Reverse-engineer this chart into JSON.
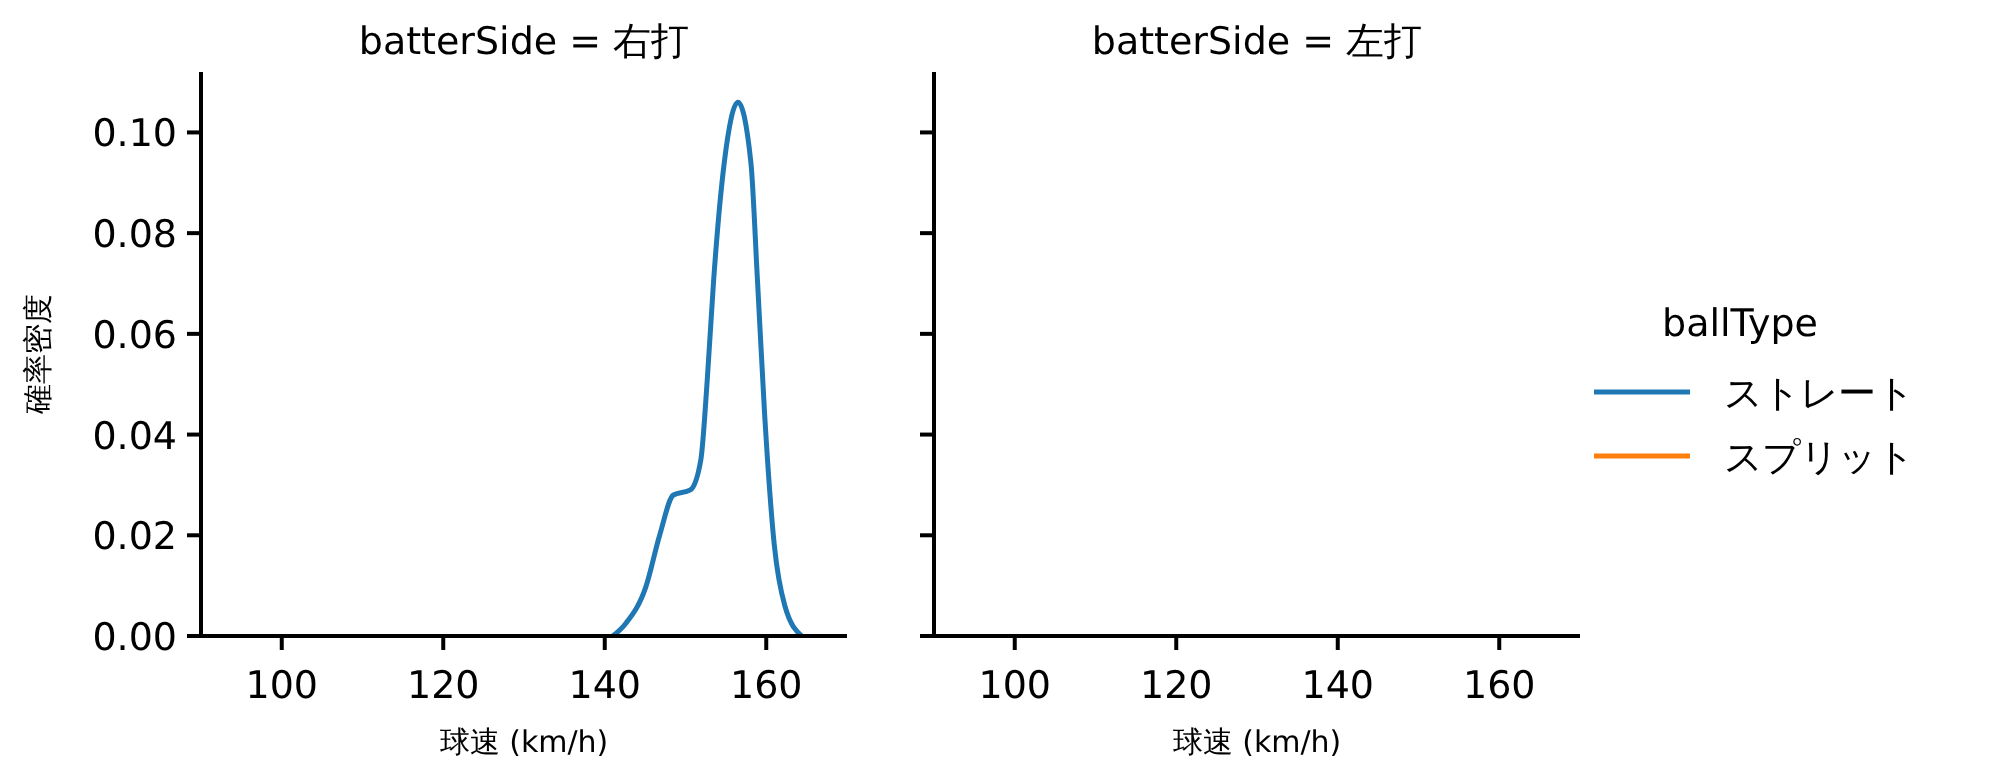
{
  "chart_data": [
    {
      "type": "line",
      "title": "batterSide = 右打",
      "xlabel": "球速 (km/h)",
      "ylabel": "確率密度",
      "xlim": [
        90,
        170
      ],
      "xticks": [
        100,
        120,
        140,
        160
      ],
      "ylim": [
        0,
        0.112
      ],
      "yticks": [
        {
          "value": 0,
          "label": "0.00"
        },
        {
          "value": 0.02,
          "label": "0.02"
        },
        {
          "value": 0.04,
          "label": "0.04"
        },
        {
          "value": 0.06,
          "label": "0.06"
        },
        {
          "value": 0.08,
          "label": "0.08"
        },
        {
          "value": 0.1,
          "label": "0.10"
        }
      ],
      "grid": false,
      "legend": "right",
      "legend_title": "ballType",
      "series": [
        {
          "name": "ストレート",
          "color": "#1f77b4",
          "x": [
            141,
            142.6,
            145.1,
            146.8,
            148.5,
            150.6,
            151.9,
            152.7,
            153.5,
            154.8,
            156.5,
            158.1,
            158.9,
            159.8,
            161.0,
            162.3,
            164.4
          ],
          "values": [
            0,
            0.0025,
            0.0098,
            0.02,
            0.028,
            0.029,
            0.035,
            0.051,
            0.071,
            0.094,
            0.106,
            0.094,
            0.071,
            0.044,
            0.018,
            0.006,
            0
          ]
        },
        {
          "name": "スプリット",
          "color": "#ff7f0e"
        }
      ]
    },
    {
      "type": "line",
      "title": "batterSide = 左打",
      "xlabel": "球速 (km/h)",
      "xlim": [
        90,
        170
      ],
      "xticks": [
        100,
        120,
        140,
        160
      ],
      "ylim": [
        0,
        0.112
      ],
      "yticks": [
        0,
        0.02,
        0.04,
        0.06,
        0.08,
        0.1
      ],
      "tick_labels": "x",
      "grid": false
    }
  ]
}
